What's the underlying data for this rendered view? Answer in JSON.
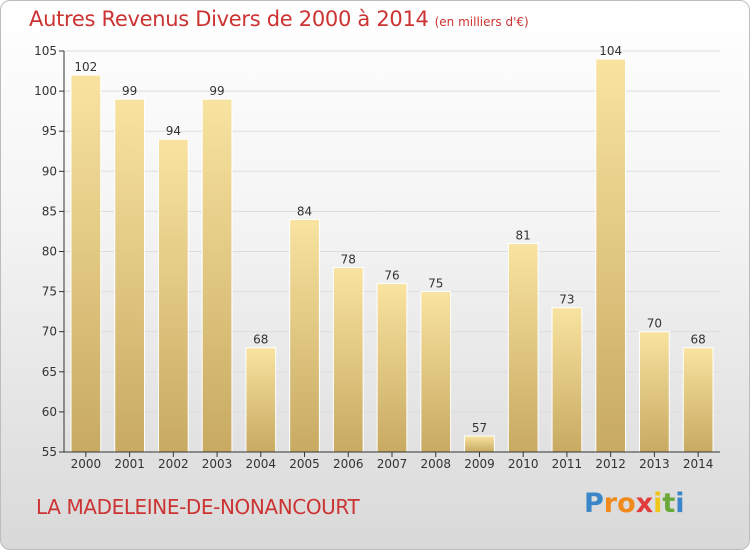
{
  "header": {
    "title": "Autres Revenus Divers de 2000 à 2014",
    "subtitle": "(en milliers d'€)"
  },
  "footer": {
    "town": "LA MADELEINE-DE-NONANCOURT"
  },
  "brand": {
    "letters": [
      "P",
      "r",
      "o",
      "x",
      "i",
      "t",
      "i"
    ],
    "colors": [
      "#3a86c8",
      "#f08a1c",
      "#f08a1c",
      "#e23b3b",
      "#f0c419",
      "#6aa83a",
      "#3a86c8"
    ]
  },
  "chart_data": {
    "type": "bar",
    "categories": [
      "2000",
      "2001",
      "2002",
      "2003",
      "2004",
      "2005",
      "2006",
      "2007",
      "2008",
      "2009",
      "2010",
      "2011",
      "2012",
      "2013",
      "2014"
    ],
    "values": [
      102,
      99,
      94,
      99,
      68,
      84,
      78,
      76,
      75,
      57,
      81,
      73,
      104,
      70,
      68
    ],
    "ylim": [
      55,
      105
    ],
    "yticks": [
      55,
      60,
      65,
      70,
      75,
      80,
      85,
      90,
      95,
      100,
      105
    ],
    "grid": true,
    "colors": {
      "bar_top": "#f8e3a0",
      "bar_bottom": "#c8aa62",
      "bar_edge": "#ffffff",
      "grid": "#dddddd",
      "axis": "#333333"
    }
  }
}
